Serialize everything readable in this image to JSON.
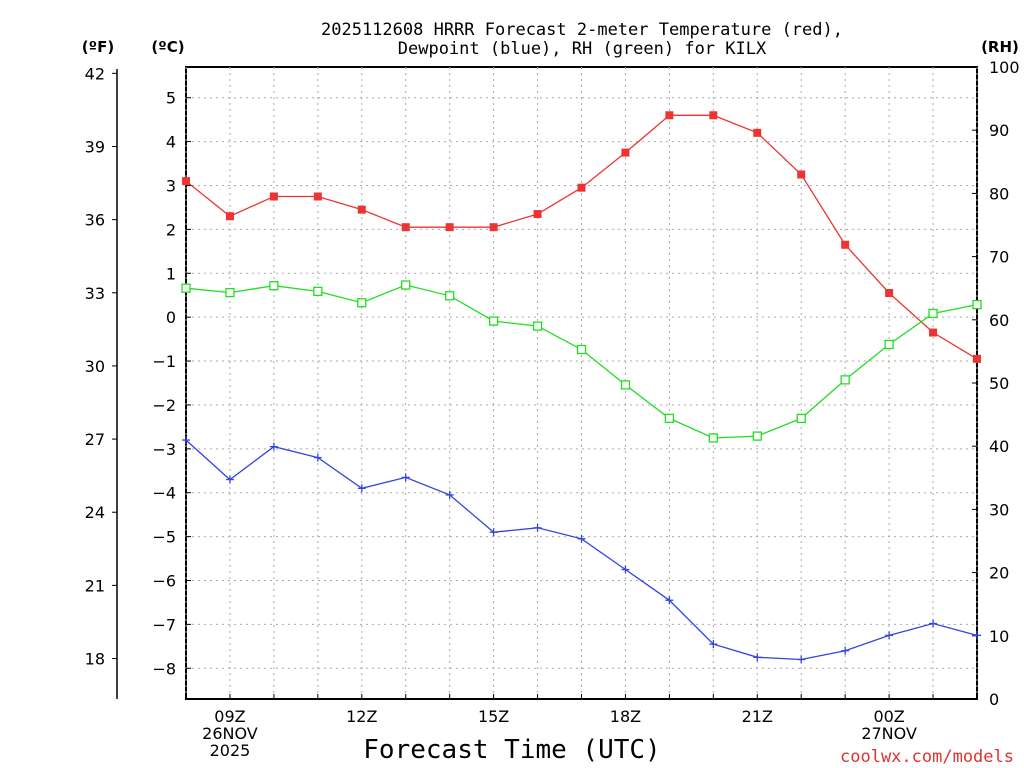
{
  "chart_data": {
    "type": "line",
    "title_lines": [
      "2025112608 HRRR Forecast 2-meter Temperature (red),",
      "Dewpoint (blue), RH (green) for KILX"
    ],
    "xlabel": "Forecast Time (UTC)",
    "credit": "coolwx.com/models",
    "x_hours": [
      8,
      9,
      10,
      11,
      12,
      13,
      14,
      15,
      16,
      17,
      18,
      19,
      20,
      21,
      22,
      23,
      24,
      25,
      26
    ],
    "xlim": [
      8,
      26
    ],
    "x_ticks": [
      {
        "hour": 9,
        "lines": [
          "09Z",
          "26NOV",
          "2025"
        ]
      },
      {
        "hour": 12,
        "lines": [
          "12Z"
        ]
      },
      {
        "hour": 15,
        "lines": [
          "15Z"
        ]
      },
      {
        "hour": 18,
        "lines": [
          "18Z"
        ]
      },
      {
        "hour": 21,
        "lines": [
          "21Z"
        ]
      },
      {
        "hour": 24,
        "lines": [
          "00Z",
          "27NOV"
        ]
      }
    ],
    "axes": {
      "celsius": {
        "unit_label": "(ºC)",
        "ylim": [
          -8.7,
          5.7
        ],
        "ticks": [
          5,
          4,
          3,
          2,
          1,
          0,
          -1,
          -2,
          -3,
          -4,
          -5,
          -6,
          -7,
          -8
        ]
      },
      "fahrenheit": {
        "unit_label": "(ºF)",
        "ylim": [
          16.34,
          42.26
        ],
        "ticks": [
          42,
          39,
          36,
          33,
          30,
          27,
          24,
          21,
          18
        ]
      },
      "rh": {
        "unit_label": "(RH)",
        "ylim": [
          0,
          100
        ],
        "ticks": [
          100,
          90,
          80,
          70,
          60,
          50,
          40,
          30,
          20,
          10,
          0
        ]
      }
    },
    "series": [
      {
        "name": "2-meter Temperature",
        "axis": "celsius",
        "color": "#ee3333",
        "marker": "filled-square",
        "values": [
          3.1,
          2.3,
          2.75,
          2.75,
          2.45,
          2.05,
          2.05,
          2.05,
          2.35,
          2.95,
          3.75,
          4.6,
          4.6,
          4.2,
          3.25,
          1.65,
          0.55,
          -0.35,
          -0.95
        ]
      },
      {
        "name": "Dewpoint",
        "axis": "celsius",
        "color": "#3344dd",
        "marker": "plus",
        "values": [
          -2.8,
          -3.7,
          -2.95,
          -3.2,
          -3.9,
          -3.65,
          -4.05,
          -4.9,
          -4.8,
          -5.05,
          -5.75,
          -6.45,
          -7.45,
          -7.75,
          -7.8,
          -7.6,
          -7.25,
          -6.98,
          -7.25
        ]
      },
      {
        "name": "Relative Humidity",
        "axis": "rh",
        "color": "#22dd22",
        "marker": "open-square",
        "values": [
          65,
          64.3,
          65.4,
          64.5,
          62.7,
          65.5,
          63.8,
          59.8,
          59,
          55.3,
          49.7,
          44.4,
          41.3,
          41.6,
          44.4,
          50.5,
          56.1,
          61,
          62.4
        ]
      }
    ]
  }
}
